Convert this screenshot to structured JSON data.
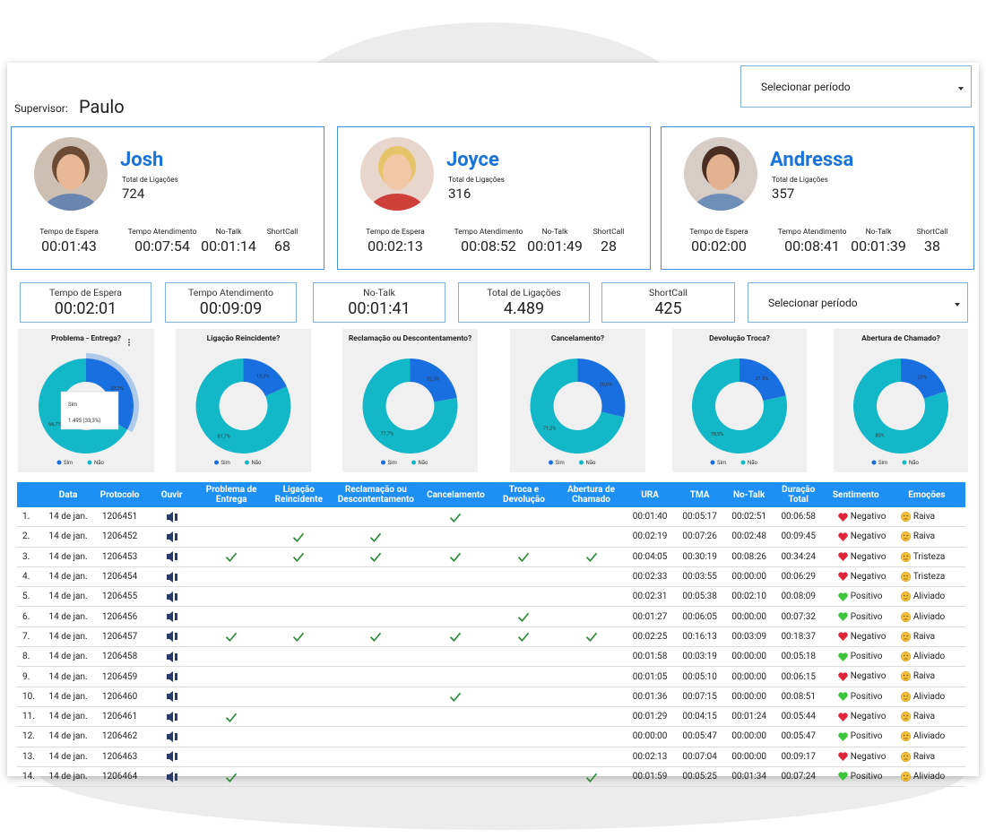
{
  "header": {
    "supervisor_label": "Supervisor:",
    "supervisor": "Paulo",
    "period_select": "Selecionar período"
  },
  "agents": [
    {
      "name": "Josh",
      "total_label": "Total de Ligações",
      "total": "724",
      "metrics": [
        {
          "label": "Tempo de Espera",
          "value": "00:01:43"
        },
        {
          "label": "Tempo Atendimento",
          "value": "00:07:54"
        },
        {
          "label": "No-Talk",
          "value": "00:01:14"
        },
        {
          "label": "ShortCall",
          "value": "68"
        }
      ]
    },
    {
      "name": "Joyce",
      "total_label": "Total de Ligações",
      "total": "316",
      "metrics": [
        {
          "label": "Tempo de Espera",
          "value": "00:02:13"
        },
        {
          "label": "Tempo Atendimento",
          "value": "00:08:52"
        },
        {
          "label": "No-Talk",
          "value": "00:01:49"
        },
        {
          "label": "ShortCall",
          "value": "28"
        }
      ]
    },
    {
      "name": "Andressa",
      "total_label": "Total de Ligações",
      "total": "357",
      "metrics": [
        {
          "label": "Tempo de Espera",
          "value": "00:02:00"
        },
        {
          "label": "Tempo Atendimento",
          "value": "00:08:41"
        },
        {
          "label": "No-Talk",
          "value": "00:01:39"
        },
        {
          "label": "ShortCall",
          "value": "38"
        }
      ]
    }
  ],
  "summary": {
    "items": [
      {
        "label": "Tempo de Espera",
        "value": "00:02:01"
      },
      {
        "label": "Tempo Atendimento",
        "value": "00:09:09"
      },
      {
        "label": "No-Talk",
        "value": "00:01:41"
      },
      {
        "label": "Total de Ligações",
        "value": "4.489"
      },
      {
        "label": "ShortCall",
        "value": "425"
      }
    ],
    "period_select": "Selecionar período"
  },
  "chart_data": [
    {
      "type": "pie",
      "title": "Problema - Entrega?",
      "categories": [
        "Sim",
        "Não"
      ],
      "values": [
        33.3,
        66.7
      ],
      "value_labels": [
        "33,3%",
        "66,7%"
      ],
      "colors": [
        "#1a6fe0",
        "#13b8c8"
      ],
      "tooltip": {
        "title": "Sim",
        "text": "1.495 (33,3%)"
      }
    },
    {
      "type": "pie",
      "title": "Ligação Reincidente?",
      "categories": [
        "Sim",
        "Não"
      ],
      "values": [
        18.3,
        81.7
      ],
      "value_labels": [
        "18,3%",
        "81,7%"
      ],
      "colors": [
        "#1a6fe0",
        "#13b8c8"
      ]
    },
    {
      "type": "pie",
      "title": "Reclamação ou Descontentamento?",
      "categories": [
        "Sim",
        "Não"
      ],
      "values": [
        22.3,
        77.7
      ],
      "value_labels": [
        "22,3%",
        "77,7%"
      ],
      "colors": [
        "#1a6fe0",
        "#13b8c8"
      ]
    },
    {
      "type": "pie",
      "title": "Cancelamento?",
      "categories": [
        "Sim",
        "Não"
      ],
      "values": [
        28.8,
        71.2
      ],
      "value_labels": [
        "28,8%",
        "71,2%"
      ],
      "colors": [
        "#1a6fe0",
        "#13b8c8"
      ]
    },
    {
      "type": "pie",
      "title": "Devolução Troca?",
      "categories": [
        "Sim",
        "Não"
      ],
      "values": [
        21.5,
        78.5
      ],
      "value_labels": [
        "21,5%",
        "78,5%"
      ],
      "colors": [
        "#1a6fe0",
        "#13b8c8"
      ]
    },
    {
      "type": "pie",
      "title": "Abertura de Chamado?",
      "categories": [
        "Sim",
        "Não"
      ],
      "values": [
        20,
        80
      ],
      "value_labels": [
        "20%",
        "80%"
      ],
      "colors": [
        "#1a6fe0",
        "#13b8c8"
      ]
    }
  ],
  "table": {
    "columns": [
      "Data",
      "Protocolo",
      "Ouvir",
      "Problema de Entrega",
      "Ligação Reincidente",
      "Reclamação ou Descontentamento",
      "Cancelamento",
      "Troca e Devolução",
      "Abertura de Chamado",
      "URA",
      "TMA",
      "No-Talk",
      "Duração Total",
      "Sentimento",
      "Emoções"
    ],
    "rows": [
      {
        "index": "1.",
        "date": "14 de jan.",
        "protocol": "1206451",
        "checks": [
          false,
          false,
          false,
          true,
          false,
          false
        ],
        "ura": "00:01:40",
        "tma": "00:05:17",
        "no_talk": "00:02:51",
        "total": "00:06:58",
        "sentiment": {
          "label": "Negativo",
          "color": "#e0243a"
        },
        "emotion": "Raiva"
      },
      {
        "index": "2.",
        "date": "14 de jan.",
        "protocol": "1206452",
        "checks": [
          false,
          true,
          true,
          false,
          false,
          false
        ],
        "ura": "00:02:19",
        "tma": "00:07:26",
        "no_talk": "00:02:48",
        "total": "00:09:45",
        "sentiment": {
          "label": "Negativo",
          "color": "#e0243a"
        },
        "emotion": "Raiva"
      },
      {
        "index": "3.",
        "date": "14 de jan.",
        "protocol": "1206453",
        "checks": [
          true,
          true,
          true,
          true,
          true,
          true
        ],
        "ura": "00:04:05",
        "tma": "00:30:19",
        "no_talk": "00:08:26",
        "total": "00:34:24",
        "sentiment": {
          "label": "Negativo",
          "color": "#e0243a"
        },
        "emotion": "Tristeza"
      },
      {
        "index": "4.",
        "date": "14 de jan.",
        "protocol": "1206454",
        "checks": [
          false,
          false,
          false,
          false,
          false,
          false
        ],
        "ura": "00:02:33",
        "tma": "00:03:55",
        "no_talk": "00:00:00",
        "total": "00:06:29",
        "sentiment": {
          "label": "Negativo",
          "color": "#e0243a"
        },
        "emotion": "Tristeza"
      },
      {
        "index": "5.",
        "date": "14 de jan.",
        "protocol": "1206455",
        "checks": [
          false,
          false,
          false,
          false,
          false,
          false
        ],
        "ura": "00:02:31",
        "tma": "00:05:38",
        "no_talk": "00:02:10",
        "total": "00:08:09",
        "sentiment": {
          "label": "Positivo",
          "color": "#3cc43c"
        },
        "emotion": "Aliviado"
      },
      {
        "index": "6.",
        "date": "14 de jan.",
        "protocol": "1206456",
        "checks": [
          false,
          false,
          false,
          false,
          true,
          false
        ],
        "ura": "00:01:27",
        "tma": "00:06:05",
        "no_talk": "00:00:00",
        "total": "00:07:32",
        "sentiment": {
          "label": "Positivo",
          "color": "#3cc43c"
        },
        "emotion": "Aliviado"
      },
      {
        "index": "7.",
        "date": "14 de jan.",
        "protocol": "1206457",
        "checks": [
          true,
          true,
          true,
          true,
          true,
          true
        ],
        "ura": "00:02:25",
        "tma": "00:16:13",
        "no_talk": "00:03:09",
        "total": "00:18:37",
        "sentiment": {
          "label": "Negativo",
          "color": "#e0243a"
        },
        "emotion": "Raiva"
      },
      {
        "index": "8.",
        "date": "14 de jan.",
        "protocol": "1206458",
        "checks": [
          false,
          false,
          false,
          false,
          false,
          false
        ],
        "ura": "00:01:58",
        "tma": "00:03:19",
        "no_talk": "00:00:00",
        "total": "00:05:18",
        "sentiment": {
          "label": "Positivo",
          "color": "#3cc43c"
        },
        "emotion": "Aliviado"
      },
      {
        "index": "9.",
        "date": "14 de jan.",
        "protocol": "1206459",
        "checks": [
          false,
          false,
          false,
          false,
          false,
          false
        ],
        "ura": "00:01:05",
        "tma": "00:05:10",
        "no_talk": "00:00:00",
        "total": "00:06:15",
        "sentiment": {
          "label": "Negativo",
          "color": "#e0243a"
        },
        "emotion": "Raiva"
      },
      {
        "index": "10.",
        "date": "14 de jan.",
        "protocol": "1206460",
        "checks": [
          false,
          false,
          false,
          true,
          false,
          false
        ],
        "ura": "00:01:36",
        "tma": "00:07:15",
        "no_talk": "00:00:00",
        "total": "00:08:51",
        "sentiment": {
          "label": "Positivo",
          "color": "#3cc43c"
        },
        "emotion": "Aliviado"
      },
      {
        "index": "11.",
        "date": "14 de jan.",
        "protocol": "1206461",
        "checks": [
          true,
          false,
          false,
          false,
          false,
          false
        ],
        "ura": "00:01:29",
        "tma": "00:04:15",
        "no_talk": "00:01:24",
        "total": "00:05:44",
        "sentiment": {
          "label": "Negativo",
          "color": "#e0243a"
        },
        "emotion": "Raiva"
      },
      {
        "index": "12.",
        "date": "14 de jan.",
        "protocol": "1206462",
        "checks": [
          false,
          false,
          false,
          false,
          false,
          false
        ],
        "ura": "00:00:00",
        "tma": "00:05:47",
        "no_talk": "00:00:00",
        "total": "00:05:47",
        "sentiment": {
          "label": "Positivo",
          "color": "#3cc43c"
        },
        "emotion": "Aliviado"
      },
      {
        "index": "13.",
        "date": "14 de jan.",
        "protocol": "1206463",
        "checks": [
          false,
          false,
          false,
          false,
          false,
          false
        ],
        "ura": "00:02:13",
        "tma": "00:07:04",
        "no_talk": "00:00:00",
        "total": "00:09:17",
        "sentiment": {
          "label": "Negativo",
          "color": "#e0243a"
        },
        "emotion": "Raiva"
      },
      {
        "index": "14.",
        "date": "14 de jan.",
        "protocol": "1206464",
        "checks": [
          true,
          false,
          false,
          false,
          false,
          true
        ],
        "ura": "00:01:59",
        "tma": "00:05:25",
        "no_talk": "00:01:34",
        "total": "00:07:24",
        "sentiment": {
          "label": "Positivo",
          "color": "#3cc43c"
        },
        "emotion": "Aliviado"
      }
    ]
  }
}
